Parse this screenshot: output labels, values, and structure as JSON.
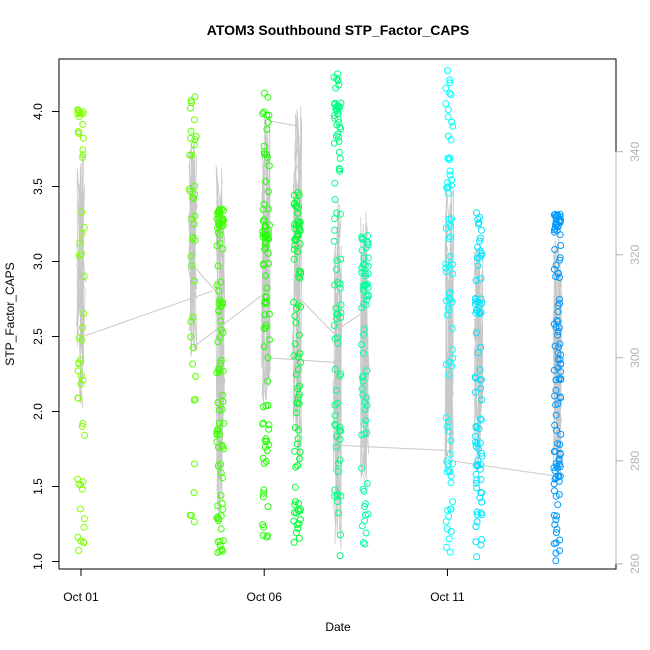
{
  "chart_data": {
    "type": "scatter",
    "title": "ATOM3 Southbound STP_Factor_CAPS",
    "xlabel": "Date",
    "ylabel": "STP_Factor_CAPS",
    "x_ticks": [
      "Oct 01",
      "Oct 06",
      "Oct 11"
    ],
    "x_tick_days": [
      1,
      6,
      11
    ],
    "xlim": [
      0.4,
      15.6
    ],
    "ylim": [
      0.95,
      4.35
    ],
    "y_ticks": [
      1.0,
      1.5,
      2.0,
      2.5,
      3.0,
      3.5,
      4.0
    ],
    "y_tick_labels": [
      "1.0",
      "1.5",
      "2.0",
      "2.5",
      "3.0",
      "3.5",
      "4.0"
    ],
    "y2lim": [
      259,
      358
    ],
    "y2_ticks": [
      260,
      280,
      300,
      320,
      340
    ],
    "y2_tick_labels": [
      "260",
      "280",
      "300",
      "320",
      "340"
    ],
    "grid": false,
    "legend": "none",
    "colors": {
      "line": "#c8c8c8",
      "axis": "#000000",
      "right_axis": "#b3b3b3"
    },
    "point_clusters": [
      {
        "day": 1.0,
        "ymin": 1.03,
        "ymax": 4.02,
        "top_cluster": 3.97,
        "color": "#80ff00",
        "n": 55
      },
      {
        "day": 4.05,
        "ymin": 1.26,
        "ymax": 4.1,
        "top_cluster": 4.08,
        "color": "#5aff00",
        "n": 40
      },
      {
        "day": 4.8,
        "ymin": 1.04,
        "ymax": 3.35,
        "top_cluster": 3.3,
        "color": "#3dff00",
        "n": 95
      },
      {
        "day": 6.05,
        "ymin": 1.12,
        "ymax": 4.16,
        "top_cluster": 3.2,
        "color": "#1fff00",
        "n": 85
      },
      {
        "day": 6.9,
        "ymin": 1.12,
        "ymax": 3.48,
        "top_cluster": 3.2,
        "color": "#00ff33",
        "n": 85
      },
      {
        "day": 8.0,
        "ymin": 1.03,
        "ymax": 4.3,
        "top_cluster": 4.0,
        "color": "#00ff80",
        "n": 90
      },
      {
        "day": 8.75,
        "ymin": 1.08,
        "ymax": 3.22,
        "top_cluster": 2.8,
        "color": "#00ff9f",
        "n": 65
      },
      {
        "day": 11.05,
        "ymin": 1.05,
        "ymax": 4.3,
        "top_cluster": 3.5,
        "color": "#00ffff",
        "n": 80
      },
      {
        "day": 11.85,
        "ymin": 1.02,
        "ymax": 3.38,
        "top_cluster": 2.7,
        "color": "#00e5ff",
        "n": 80
      },
      {
        "day": 14.0,
        "ymin": 1.0,
        "ymax": 3.32,
        "top_cluster": 3.25,
        "color": "#0099ff",
        "n": 110
      }
    ],
    "line_segments": [
      {
        "day": 1.0,
        "vmin": 290,
        "vmax": 340,
        "base": 304
      },
      {
        "day": 4.05,
        "vmin": 300,
        "vmax": 342,
        "base": 310
      },
      {
        "day": 4.8,
        "vmin": 268,
        "vmax": 338,
        "base": 318
      },
      {
        "day": 6.05,
        "vmin": 290,
        "vmax": 349,
        "base": 346
      },
      {
        "day": 6.9,
        "vmin": 278,
        "vmax": 349,
        "base": 347
      },
      {
        "day": 8.0,
        "vmin": 262,
        "vmax": 333,
        "base": 298
      },
      {
        "day": 8.75,
        "vmin": 275,
        "vmax": 332,
        "base": 301
      },
      {
        "day": 11.05,
        "vmin": 276,
        "vmax": 335,
        "base": 281
      },
      {
        "day": 11.85,
        "vmin": 278,
        "vmax": 324,
        "base": 279
      },
      {
        "day": 14.0,
        "vmin": 276,
        "vmax": 325,
        "base": 277
      }
    ],
    "connector_lines": [
      {
        "from": [
          1.0,
          304
        ],
        "to": [
          4.6,
          313
        ]
      },
      {
        "from": [
          4.05,
          318
        ],
        "to": [
          4.8,
          312
        ]
      },
      {
        "from": [
          4.05,
          302
        ],
        "to": [
          6.1,
          313
        ]
      },
      {
        "from": [
          6.1,
          346
        ],
        "to": [
          6.9,
          345
        ]
      },
      {
        "from": [
          6.1,
          300
        ],
        "to": [
          8.05,
          299
        ]
      },
      {
        "from": [
          6.9,
          312
        ],
        "to": [
          8.0,
          304
        ]
      },
      {
        "from": [
          8.05,
          283
        ],
        "to": [
          11.05,
          282
        ]
      },
      {
        "from": [
          11.1,
          280
        ],
        "to": [
          14.0,
          277
        ]
      },
      {
        "from": [
          8.1,
          306
        ],
        "to": [
          8.75,
          309
        ]
      }
    ]
  }
}
